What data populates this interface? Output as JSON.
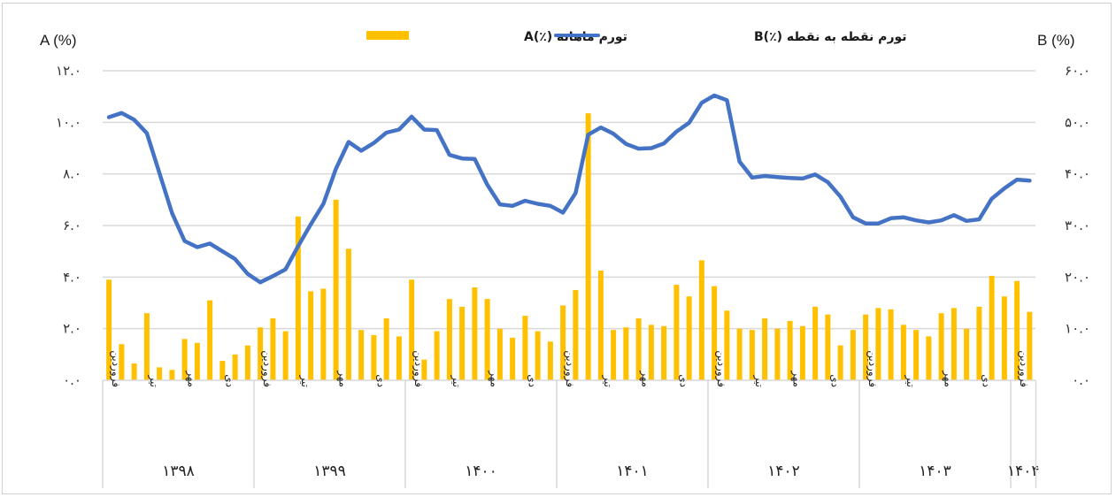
{
  "chart_data": {
    "type": "bar+line",
    "title": "",
    "legend": [
      {
        "name": "تورم ماهانه (٪)A",
        "type": "bar",
        "color": "#FFC000",
        "axis": "left"
      },
      {
        "name": "تورم نقطه به نقطه (٪)B",
        "type": "line",
        "color": "#4472C4",
        "axis": "right"
      }
    ],
    "left_axis": {
      "label": "A (%)",
      "min": 0,
      "max": 12,
      "step": 2,
      "tick_labels": [
        "۰.۰",
        "۲.۰",
        "۴.۰",
        "۶.۰",
        "۸.۰",
        "۱۰.۰",
        "۱۲.۰"
      ]
    },
    "right_axis": {
      "label": "B (%)",
      "min": 0,
      "max": 60,
      "step": 10,
      "tick_labels": [
        "۰.۰",
        "۱۰.۰",
        "۲۰.۰",
        "۳۰.۰",
        "۴۰.۰",
        "۵۰.۰",
        "۶۰.۰"
      ]
    },
    "grid": true,
    "legend_position": "top",
    "years": [
      {
        "label": "۱۳۹۸",
        "months": 12
      },
      {
        "label": "۱۳۹۹",
        "months": 12
      },
      {
        "label": "۱۴۰۰",
        "months": 12
      },
      {
        "label": "۱۴۰۱",
        "months": 12
      },
      {
        "label": "۱۴۰۲",
        "months": 12
      },
      {
        "label": "۱۴۰۳",
        "months": 12
      },
      {
        "label": "۱۴۰۴",
        "months": 2
      }
    ],
    "month_tick_labels": {
      "0": "فروردین",
      "3": "تیر",
      "6": "مهر",
      "9": "دی"
    },
    "series_A_monthly": [
      3.9,
      1.4,
      0.65,
      2.6,
      0.5,
      0.4,
      1.6,
      1.45,
      3.1,
      0.75,
      1.0,
      1.35,
      2.05,
      2.4,
      1.9,
      6.35,
      3.45,
      3.55,
      7.0,
      5.1,
      1.95,
      1.75,
      2.4,
      1.7,
      3.9,
      0.8,
      1.9,
      3.15,
      2.85,
      3.6,
      3.15,
      2.0,
      1.65,
      2.5,
      1.9,
      1.5,
      2.9,
      3.5,
      10.35,
      4.25,
      1.95,
      2.05,
      2.4,
      2.15,
      2.1,
      3.7,
      3.25,
      4.65,
      3.65,
      2.7,
      2.0,
      1.95,
      2.4,
      2.0,
      2.3,
      2.1,
      2.85,
      2.55,
      1.35,
      1.95,
      2.55,
      2.8,
      2.75,
      2.15,
      1.95,
      1.7,
      2.6,
      2.8,
      2.0,
      2.85,
      4.05,
      3.25,
      3.85,
      2.65
    ],
    "series_B_yoy": [
      51.0,
      51.8,
      50.5,
      47.9,
      40.2,
      32.4,
      27.0,
      25.8,
      26.5,
      25.0,
      23.5,
      20.6,
      19.0,
      20.2,
      21.5,
      26.0,
      30.2,
      34.2,
      41.0,
      46.2,
      44.5,
      46.0,
      48.0,
      48.6,
      51.1,
      48.6,
      48.5,
      43.7,
      43.0,
      42.9,
      37.9,
      34.1,
      33.8,
      34.8,
      34.2,
      33.8,
      32.5,
      36.3,
      47.6,
      49.0,
      47.8,
      45.8,
      44.9,
      45.0,
      45.9,
      48.2,
      49.9,
      53.8,
      55.2,
      54.3,
      42.4,
      39.3,
      39.6,
      39.4,
      39.2,
      39.1,
      39.9,
      38.4,
      35.6,
      31.6,
      30.4,
      30.4,
      31.4,
      31.6,
      31.0,
      30.6,
      31.0,
      32.0,
      30.9,
      31.2,
      35.2,
      37.2,
      38.9,
      38.7
    ]
  },
  "legend": {
    "bar_label": "تورم ماهانه (٪)A",
    "line_label": "تورم نقطه به نقطه (٪)B"
  },
  "axes": {
    "left_title": "A (%)",
    "right_title": "B (%)"
  },
  "colors": {
    "bar": "#FFC000",
    "line": "#4472C4",
    "grid": "#d9d9d9"
  }
}
